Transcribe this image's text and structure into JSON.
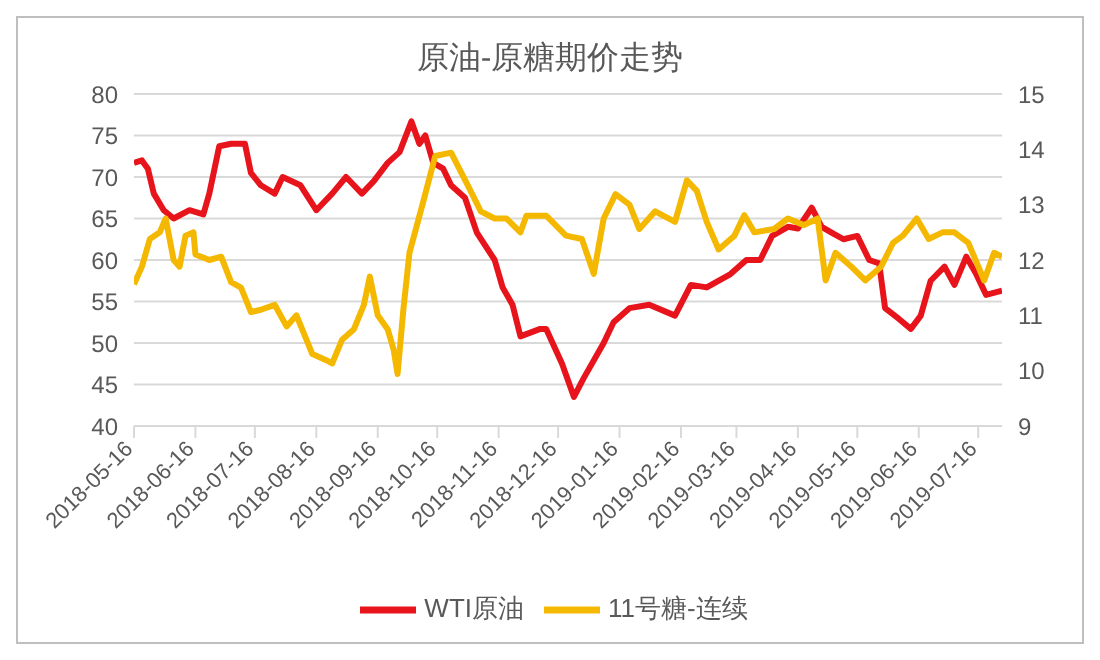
{
  "chart_data": {
    "type": "line",
    "title": "原油-原糖期价走势",
    "xlim": [
      "2018-05-16",
      "2019-07-28"
    ],
    "xticks": [
      "2018-05-16",
      "2018-06-16",
      "2018-07-16",
      "2018-08-16",
      "2018-09-16",
      "2018-10-16",
      "2018-11-16",
      "2018-12-16",
      "2019-01-16",
      "2019-02-16",
      "2019-03-16",
      "2019-04-16",
      "2019-05-16",
      "2019-06-16",
      "2019-07-16"
    ],
    "ylim": [
      40,
      80
    ],
    "yticks": [
      40,
      45,
      50,
      55,
      60,
      65,
      70,
      75,
      80
    ],
    "y2lim": [
      9,
      15
    ],
    "y2ticks": [
      9,
      10,
      11,
      12,
      13,
      14,
      15
    ],
    "grid": "y",
    "legend": "bottom",
    "line_style": "solid",
    "marker": "none",
    "series": [
      {
        "name": "WTI原油",
        "color": "#e8141c",
        "x": [
          "2018-05-16",
          "2018-05-20",
          "2018-05-23",
          "2018-05-26",
          "2018-05-31",
          "2018-06-05",
          "2018-06-13",
          "2018-06-20",
          "2018-06-23",
          "2018-06-28",
          "2018-07-04",
          "2018-07-11",
          "2018-07-14",
          "2018-07-19",
          "2018-07-26",
          "2018-07-30",
          "2018-08-08",
          "2018-08-16",
          "2018-08-24",
          "2018-08-31",
          "2018-09-08",
          "2018-09-14",
          "2018-09-21",
          "2018-09-27",
          "2018-10-03",
          "2018-10-07",
          "2018-10-10",
          "2018-10-14",
          "2018-10-19",
          "2018-10-23",
          "2018-10-30",
          "2018-11-05",
          "2018-11-14",
          "2018-11-18",
          "2018-11-23",
          "2018-11-27",
          "2018-12-07",
          "2018-12-10",
          "2018-12-18",
          "2018-12-24",
          "2018-12-29",
          "2019-01-08",
          "2019-01-13",
          "2019-01-21",
          "2019-01-31",
          "2019-02-13",
          "2019-02-21",
          "2019-03-01",
          "2019-03-13",
          "2019-03-21",
          "2019-03-28",
          "2019-04-03",
          "2019-04-11",
          "2019-04-16",
          "2019-04-23",
          "2019-04-28",
          "2019-05-03",
          "2019-05-09",
          "2019-05-16",
          "2019-05-22",
          "2019-05-27",
          "2019-05-30",
          "2019-06-06",
          "2019-06-12",
          "2019-06-17",
          "2019-06-22",
          "2019-06-29",
          "2019-07-04",
          "2019-07-10",
          "2019-07-15",
          "2019-07-20",
          "2019-07-28"
        ],
        "values": [
          71.7,
          72,
          71,
          68,
          66,
          65,
          66,
          65.5,
          68,
          73.7,
          74,
          74,
          70.5,
          69,
          68,
          70,
          69,
          66,
          68,
          70,
          68,
          69.5,
          71.7,
          73,
          76.7,
          74,
          75,
          71.7,
          71,
          69,
          67.5,
          63.3,
          60,
          56.7,
          54.6,
          50.8,
          51.7,
          51.7,
          47.5,
          43.5,
          45.8,
          50,
          52.5,
          54.2,
          54.6,
          53.3,
          57,
          56.7,
          58.3,
          60,
          60,
          62.9,
          64,
          63.8,
          66.3,
          64,
          63.3,
          62.5,
          62.9,
          60,
          59.6,
          54.2,
          52.9,
          51.7,
          53.3,
          57.5,
          59.2,
          57,
          60.4,
          58.3,
          55.8,
          56.3
        ]
      },
      {
        "name": "11号糖-连续",
        "color": "#f5b800",
        "axis": "y2",
        "x": [
          "2018-05-16",
          "2018-05-20",
          "2018-05-24",
          "2018-05-29",
          "2018-06-01",
          "2018-06-05",
          "2018-06-08",
          "2018-06-11",
          "2018-06-15",
          "2018-06-16",
          "2018-06-23",
          "2018-06-29",
          "2018-07-04",
          "2018-07-09",
          "2018-07-14",
          "2018-07-19",
          "2018-07-26",
          "2018-08-01",
          "2018-08-06",
          "2018-08-14",
          "2018-08-21",
          "2018-08-24",
          "2018-08-29",
          "2018-09-04",
          "2018-09-09",
          "2018-09-12",
          "2018-09-16",
          "2018-09-21",
          "2018-09-24",
          "2018-09-26",
          "2018-09-29",
          "2018-10-02",
          "2018-10-09",
          "2018-10-15",
          "2018-10-23",
          "2018-10-31",
          "2018-11-07",
          "2018-11-14",
          "2018-11-20",
          "2018-11-27",
          "2018-11-30",
          "2018-12-07",
          "2018-12-10",
          "2018-12-20",
          "2018-12-28",
          "2019-01-03",
          "2019-01-08",
          "2019-01-14",
          "2019-01-21",
          "2019-01-26",
          "2019-02-03",
          "2019-02-13",
          "2019-02-19",
          "2019-02-24",
          "2019-03-01",
          "2019-03-07",
          "2019-03-15",
          "2019-03-20",
          "2019-03-25",
          "2019-04-04",
          "2019-04-11",
          "2019-04-19",
          "2019-04-26",
          "2019-04-30",
          "2019-05-05",
          "2019-05-13",
          "2019-05-20",
          "2019-05-28",
          "2019-06-03",
          "2019-06-08",
          "2019-06-15",
          "2019-06-21",
          "2019-06-28",
          "2019-07-04",
          "2019-07-11",
          "2019-07-19",
          "2019-07-24",
          "2019-07-28"
        ],
        "values": [
          11.56,
          11.88,
          12.38,
          12.5,
          12.75,
          12,
          11.88,
          12.44,
          12.5,
          12.1,
          12,
          12.06,
          11.6,
          11.5,
          11.06,
          11.1,
          11.19,
          10.8,
          11,
          10.3,
          10.19,
          10.13,
          10.56,
          10.75,
          11.19,
          11.7,
          11,
          10.75,
          10.38,
          9.94,
          11.13,
          12.13,
          13.06,
          13.88,
          13.94,
          13.38,
          12.88,
          12.75,
          12.75,
          12.5,
          12.8,
          12.8,
          12.8,
          12.44,
          12.38,
          11.75,
          12.75,
          13.19,
          13,
          12.56,
          12.88,
          12.69,
          13.44,
          13.25,
          12.69,
          12.19,
          12.44,
          12.81,
          12.5,
          12.56,
          12.75,
          12.63,
          12.75,
          11.63,
          12.13,
          11.88,
          11.63,
          11.88,
          12.31,
          12.44,
          12.75,
          12.38,
          12.5,
          12.5,
          12.31,
          11.63,
          12.13,
          12.06
        ]
      }
    ]
  }
}
